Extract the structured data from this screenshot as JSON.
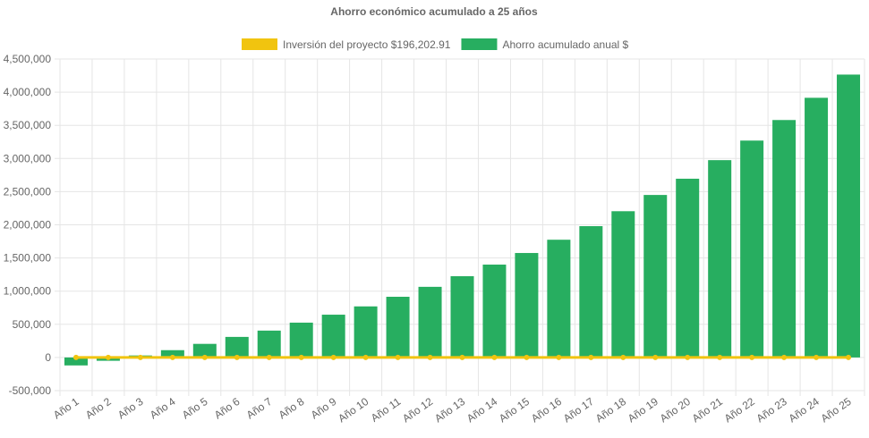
{
  "chart_data": {
    "type": "bar",
    "title": "Ahorro económico acumulado a 25 años",
    "categories": [
      "Año 1",
      "Año 2",
      "Año 3",
      "Año 4",
      "Año 5",
      "Año 6",
      "Año 7",
      "Año 8",
      "Año 9",
      "Año 10",
      "Año 11",
      "Año 12",
      "Año 13",
      "Año 14",
      "Año 15",
      "Año 16",
      "Año 17",
      "Año 18",
      "Año 19",
      "Año 20",
      "Año 21",
      "Año 22",
      "Año 23",
      "Año 24",
      "Año 25"
    ],
    "series": [
      {
        "name": "Inversión del proyecto $196,202.91",
        "type": "line",
        "color": "#f1c40f",
        "values": [
          0,
          0,
          0,
          0,
          0,
          0,
          0,
          0,
          0,
          0,
          0,
          0,
          0,
          0,
          0,
          0,
          0,
          0,
          0,
          0,
          0,
          0,
          0,
          0,
          0
        ]
      },
      {
        "name": "Ahorro acumulado anual $",
        "type": "bar",
        "color": "#27ae60",
        "values": [
          -120000,
          -50000,
          30000,
          110000,
          205000,
          310000,
          405000,
          525000,
          645000,
          770000,
          915000,
          1065000,
          1225000,
          1400000,
          1575000,
          1775000,
          1980000,
          2205000,
          2450000,
          2695000,
          2975000,
          3270000,
          3580000,
          3915000,
          4265000
        ]
      }
    ],
    "ylim": [
      -500000,
      4500000
    ],
    "yticks": [
      {
        "value": -500000,
        "label": "-500,000"
      },
      {
        "value": 0,
        "label": "0"
      },
      {
        "value": 500000,
        "label": "500,000"
      },
      {
        "value": 1000000,
        "label": "1,000,000"
      },
      {
        "value": 1500000,
        "label": "1,500,000"
      },
      {
        "value": 2000000,
        "label": "2,000,000"
      },
      {
        "value": 2500000,
        "label": "2,500,000"
      },
      {
        "value": 3000000,
        "label": "3,000,000"
      },
      {
        "value": 3500000,
        "label": "3,500,000"
      },
      {
        "value": 4000000,
        "label": "4,000,000"
      },
      {
        "value": 4500000,
        "label": "4,500,000"
      }
    ],
    "grid": true
  }
}
